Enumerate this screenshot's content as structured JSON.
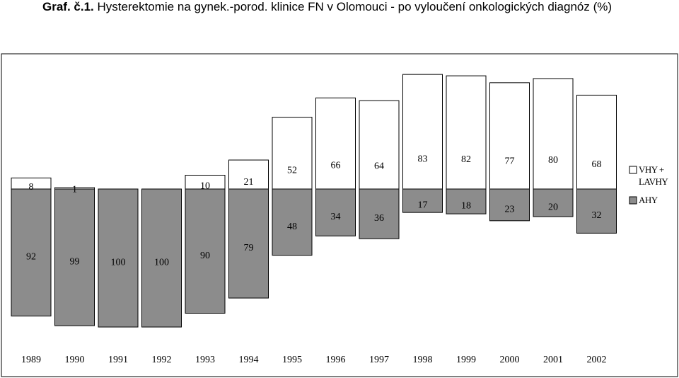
{
  "title": {
    "prefix": "Graf. č.1.",
    "text": "Hysterektomie na gynek.-porod. klinice FN v Olomouci - po vyloučení onkologických diagnóz (%)"
  },
  "chart_data": {
    "type": "bar",
    "stacked": true,
    "categories": [
      "1989",
      "1990",
      "1991",
      "1992",
      "1993",
      "1994",
      "1995",
      "1996",
      "1997",
      "1998",
      "1999",
      "2000",
      "2001",
      "2002"
    ],
    "series": [
      {
        "name": "AHY",
        "color": "#8c8c8c",
        "values": [
          92,
          99,
          100,
          100,
          90,
          79,
          48,
          34,
          36,
          17,
          18,
          23,
          20,
          32
        ]
      },
      {
        "name": "VHY + LAVHY",
        "color": "#ffffff",
        "values": [
          8,
          1,
          0,
          0,
          10,
          21,
          52,
          66,
          64,
          83,
          82,
          77,
          80,
          68
        ]
      }
    ],
    "legend": {
      "position": "right",
      "vhy_line1": "VHY +",
      "vhy_line2": "LAVHY",
      "ahy": "AHY"
    },
    "ylim": [
      0,
      100
    ],
    "xlabel": "",
    "ylabel": ""
  }
}
